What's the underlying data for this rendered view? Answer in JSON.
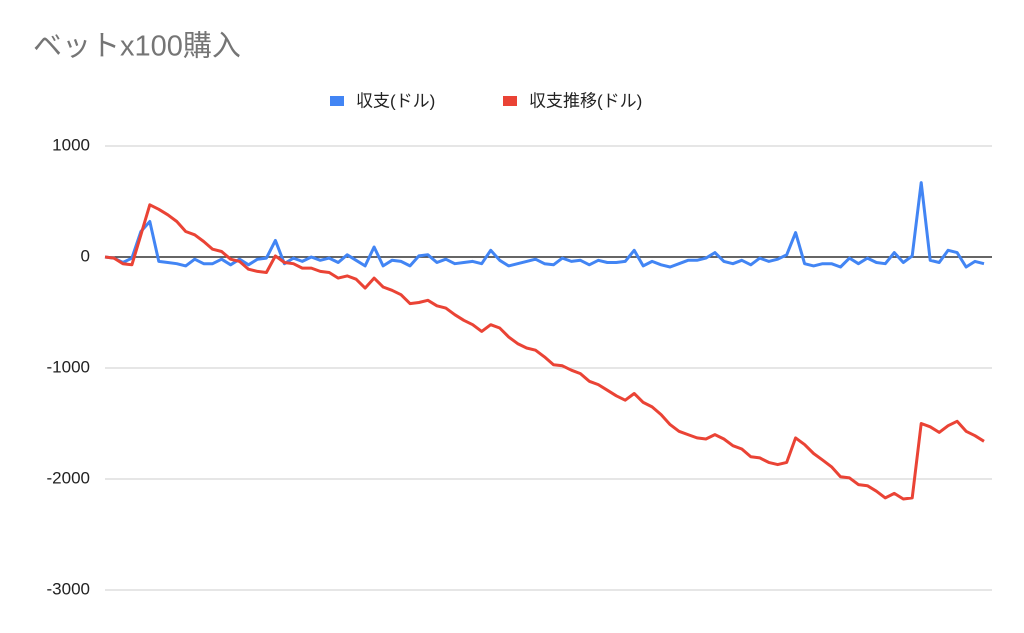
{
  "chart_data": {
    "type": "line",
    "title": "ベットx100購入",
    "ylim": [
      -3000,
      1000
    ],
    "yticks": [
      1000,
      0,
      -1000,
      -2000,
      -3000
    ],
    "grid": true,
    "legend": "top",
    "series": [
      {
        "name": "収支(ドル)",
        "color": "#4285f4",
        "values": [
          0,
          -10,
          -50,
          -10,
          230,
          320,
          -40,
          -50,
          -60,
          -80,
          -20,
          -60,
          -60,
          -20,
          -70,
          -20,
          -70,
          -20,
          -10,
          150,
          -60,
          -10,
          -40,
          0,
          -30,
          -10,
          -50,
          20,
          -30,
          -80,
          90,
          -80,
          -30,
          -40,
          -80,
          10,
          20,
          -50,
          -20,
          -60,
          -50,
          -40,
          -60,
          60,
          -30,
          -80,
          -60,
          -40,
          -20,
          -60,
          -70,
          -10,
          -40,
          -30,
          -70,
          -30,
          -50,
          -50,
          -40,
          60,
          -80,
          -40,
          -70,
          -90,
          -60,
          -30,
          -30,
          -10,
          40,
          -40,
          -60,
          -30,
          -70,
          -10,
          -40,
          -20,
          20,
          220,
          -60,
          -80,
          -60,
          -60,
          -90,
          -10,
          -60,
          -10,
          -50,
          -60,
          40,
          -50,
          10,
          670,
          -30,
          -50,
          60,
          40,
          -90,
          -40,
          -60
        ]
      },
      {
        "name": "収支推移(ドル)",
        "color": "#ea4335",
        "values": [
          0,
          -10,
          -60,
          -70,
          200,
          470,
          430,
          380,
          320,
          230,
          200,
          140,
          70,
          50,
          -20,
          -40,
          -110,
          -130,
          -140,
          10,
          -50,
          -60,
          -100,
          -100,
          -130,
          -140,
          -190,
          -170,
          -200,
          -280,
          -190,
          -270,
          -300,
          -340,
          -420,
          -410,
          -390,
          -440,
          -460,
          -520,
          -570,
          -610,
          -670,
          -610,
          -640,
          -720,
          -780,
          -820,
          -840,
          -900,
          -970,
          -980,
          -1020,
          -1050,
          -1120,
          -1150,
          -1200,
          -1250,
          -1290,
          -1230,
          -1310,
          -1350,
          -1420,
          -1510,
          -1570,
          -1600,
          -1630,
          -1640,
          -1600,
          -1640,
          -1700,
          -1730,
          -1800,
          -1810,
          -1850,
          -1870,
          -1850,
          -1630,
          -1690,
          -1770,
          -1830,
          -1890,
          -1980,
          -1990,
          -2050,
          -2060,
          -2110,
          -2170,
          -2130,
          -2180,
          -2170,
          -1500,
          -1530,
          -1580,
          -1520,
          -1480,
          -1570,
          -1610,
          -1660
        ]
      }
    ]
  }
}
